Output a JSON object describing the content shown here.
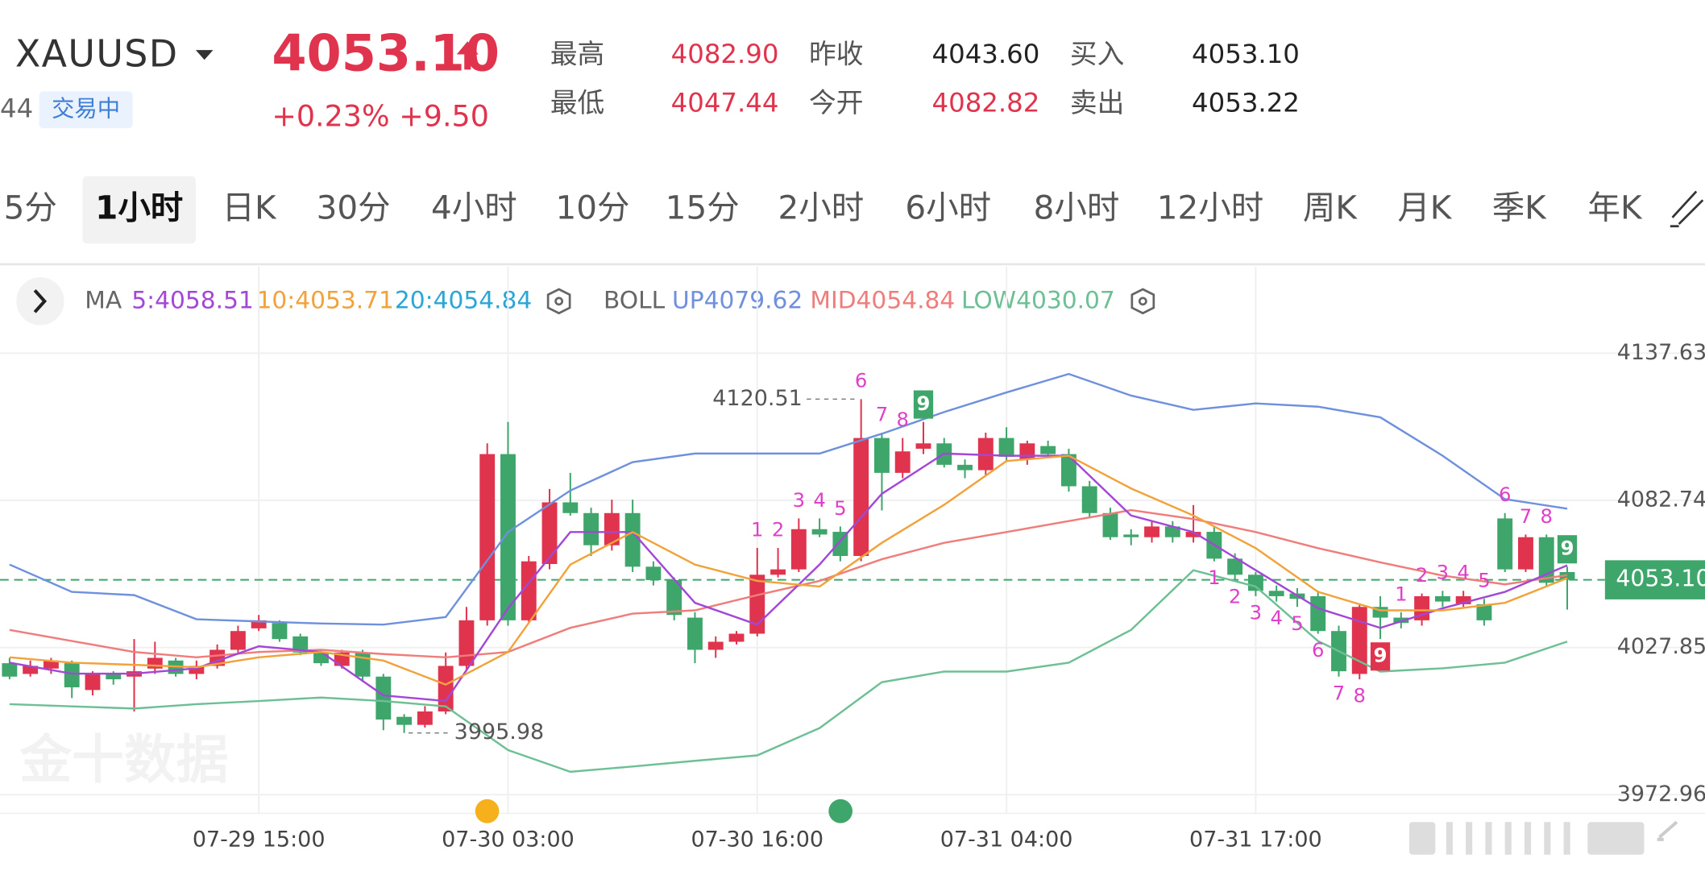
{
  "header": {
    "symbol": "XAUUSD",
    "code_fragment": "44",
    "status": "交易中",
    "price": "4053.10",
    "change_pct": "+0.23%",
    "change": "+9.50",
    "stats": [
      {
        "label": "最高",
        "value": "4082.90",
        "color": "#e0344e"
      },
      {
        "label": "昨收",
        "value": "4043.60",
        "color": "#222222"
      },
      {
        "label": "买入",
        "value": "4053.10",
        "color": "#222222"
      },
      {
        "label": "最低",
        "value": "4047.44",
        "color": "#e0344e"
      },
      {
        "label": "今开",
        "value": "4082.82",
        "color": "#e0344e"
      },
      {
        "label": "卖出",
        "value": "4053.22",
        "color": "#222222"
      }
    ]
  },
  "tabs": {
    "items": [
      "5分",
      "1小时",
      "日K",
      "30分",
      "4小时",
      "10分",
      "15分",
      "2小时",
      "6小时",
      "8小时",
      "12小时",
      "周K",
      "月K",
      "季K",
      "年K"
    ],
    "selected": 1
  },
  "watermark": "金十数据",
  "chart_data": {
    "type": "candlestick",
    "categories": [
      null,
      null,
      null,
      null,
      null,
      null,
      null,
      null,
      null,
      null,
      null,
      null,
      "07-29 15:00",
      null,
      null,
      null,
      null,
      null,
      null,
      null,
      null,
      null,
      null,
      null,
      "07-30 03:00",
      null,
      null,
      null,
      null,
      null,
      null,
      null,
      null,
      null,
      null,
      null,
      "07-30 16:00",
      null,
      null,
      null,
      null,
      null,
      null,
      null,
      null,
      null,
      null,
      null,
      "07-31 04:00",
      null,
      null,
      null,
      null,
      null,
      null,
      null,
      null,
      null,
      null,
      null,
      "07-31 17:00",
      null,
      null,
      null,
      null,
      null,
      null,
      null,
      null,
      null,
      null,
      null,
      null,
      null,
      null,
      null
    ],
    "open": [
      4022,
      4018,
      4020,
      4022,
      4012,
      4018,
      4017,
      4020,
      4023,
      4018,
      4021,
      4027,
      4035,
      4037,
      4032,
      4026,
      4021,
      4026,
      4017,
      4002,
      3999,
      4004,
      4021,
      4038,
      4100,
      4038,
      4059,
      4082,
      4078,
      4066,
      4078,
      4058,
      4053,
      4039,
      4027,
      4030,
      4033,
      4055,
      4057,
      4072,
      4071,
      4062,
      4106,
      4093,
      4102,
      4104,
      4096,
      4094,
      4106,
      4098,
      4103,
      4100,
      4088,
      4078,
      4070,
      4069,
      4073,
      4069,
      4071,
      4061,
      4055,
      4049,
      4048,
      4047,
      4034,
      4018,
      4043,
      4039,
      4038,
      4047,
      4044,
      4044,
      4076,
      4057,
      4069,
      4056
    ],
    "high": [
      4024,
      4023,
      4024,
      4023,
      4019,
      4019,
      4031,
      4030,
      4024,
      4023,
      4029,
      4036,
      4040,
      4038,
      4033,
      4027,
      4027,
      4027,
      4018,
      4003,
      4006,
      4026,
      4043,
      4104,
      4112,
      4062,
      4087,
      4093,
      4080,
      4083,
      4083,
      4060,
      4054,
      4041,
      4032,
      4034,
      4065,
      4065,
      4076,
      4076,
      4073,
      4120.51,
      4108,
      4106,
      4112,
      4106,
      4098,
      4108,
      4110,
      4105,
      4105,
      4102,
      4090,
      4080,
      4072,
      4075,
      4075,
      4081,
      4073,
      4063,
      4056,
      4051,
      4050,
      4049,
      4036,
      4044,
      4047,
      4041,
      4048,
      4049,
      4049,
      4046,
      4078,
      4070,
      4070,
      4058
    ],
    "low": [
      4016,
      4017,
      4018,
      4009,
      4010,
      4014,
      4004,
      4018,
      4017,
      4016,
      4020,
      4026,
      4034,
      4030,
      4025,
      4021,
      4020,
      4015,
      3997,
      3995.98,
      3998,
      4003,
      4019,
      4036,
      4036,
      4037,
      4057,
      4077,
      4062,
      4064,
      4056,
      4051,
      4038,
      4022,
      4024,
      4029,
      4032,
      4054,
      4056,
      4069,
      4060,
      4060,
      4079,
      4091,
      4100,
      4095,
      4091,
      4092,
      4097,
      4096,
      4099,
      4086,
      4076,
      4068,
      4066,
      4067,
      4067,
      4067,
      4060,
      4053,
      4047,
      4045,
      4043,
      4033,
      4017,
      4016,
      4031,
      4035,
      4036,
      4043,
      4043,
      4036,
      4056,
      4056,
      4051,
      4042
    ],
    "close": [
      4017,
      4021,
      4023,
      4013,
      4018,
      4016,
      4019,
      4024,
      4018,
      4021,
      4027,
      4034,
      4038,
      4031,
      4026,
      4022,
      4026,
      4017,
      4001,
      3999,
      4004,
      4021,
      4038,
      4100,
      4038,
      4060,
      4082,
      4078,
      4066,
      4078,
      4058,
      4053,
      4040,
      4027,
      4030,
      4033,
      4055,
      4057,
      4072,
      4070,
      4062,
      4106,
      4093,
      4101,
      4104,
      4096,
      4094,
      4106,
      4099,
      4104,
      4100,
      4088,
      4078,
      4069,
      4069,
      4073,
      4069,
      4071,
      4061,
      4055,
      4049,
      4047,
      4046,
      4034,
      4019,
      4043,
      4039,
      4037,
      4047,
      4045,
      4047,
      4038,
      4057,
      4069,
      4052,
      4053.1
    ],
    "up_color": "#e0344e",
    "down_color": "#3fa66b",
    "ylim": [
      3966,
      4170
    ],
    "yticks": [
      3972.96,
      4027.85,
      4082.74,
      4137.63
    ],
    "grid": true,
    "last_close_label": "4053.10",
    "last_color": "#3fa66b",
    "lines": {
      "x": [
        0,
        3,
        6,
        9,
        12,
        15,
        18,
        21,
        24,
        27,
        30,
        33,
        36,
        39,
        42,
        45,
        48,
        51,
        54,
        57,
        60,
        63,
        66,
        69,
        72,
        75
      ],
      "ma": {
        "label": "MA",
        "series": [
          {
            "name": "5:4058.51",
            "color": "#a347d6",
            "values": [
              4022.2,
              4018.1,
              4018.1,
              4020.1,
              4028.3,
              4026.2,
              4010.0,
              4007.9,
              4042.5,
              4070.9,
              4070.9,
              4044.5,
              4036.4,
              4058.8,
              4085.2,
              4100.2,
              4099.4,
              4099.4,
              4077.1,
              4070.9,
              4056.7,
              4042.5,
              4035.2,
              4042.5,
              4048.6,
              4058.51
            ]
          },
          {
            "name": "10:4053.71",
            "color": "#f2a23a",
            "values": [
              4024.2,
              4022.2,
              4021.4,
              4020.5,
              4024.2,
              4026.2,
              4023.0,
              4014.0,
              4026.2,
              4058.8,
              4070.9,
              4058.8,
              4052.7,
              4050.6,
              4066.9,
              4081.1,
              4097.4,
              4099.4,
              4087.2,
              4077.1,
              4064.9,
              4048.6,
              4041.7,
              4041.7,
              4044.5,
              4053.71
            ]
          },
          {
            "name": "20:4054.84",
            "color": "#2aa6d6"
          }
        ]
      },
      "boll": {
        "label": "BOLL",
        "series": [
          {
            "name": "UP4079.62",
            "color": "#6f90dd",
            "values": [
              4058.8,
              4048.6,
              4047.4,
              4038.4,
              4037.6,
              4036.8,
              4036.4,
              4039.2,
              4070.9,
              4086.4,
              4097.0,
              4100.2,
              4100.2,
              4100.2,
              4107.6,
              4115.7,
              4123.0,
              4129.9,
              4121.8,
              4116.5,
              4118.9,
              4117.7,
              4113.7,
              4099.4,
              4083.2,
              4079.62
            ]
          },
          {
            "name": "MID4054.84",
            "color": "#ee7d7b",
            "values": [
              4034.4,
              4030.3,
              4026.2,
              4024.2,
              4026.2,
              4027.0,
              4025.4,
              4024.2,
              4026.2,
              4035.2,
              4040.5,
              4041.7,
              4047.4,
              4052.7,
              4060.8,
              4066.9,
              4070.9,
              4075.0,
              4079.1,
              4075.8,
              4070.9,
              4064.9,
              4059.6,
              4054.7,
              4051.4,
              4054.84
            ]
          },
          {
            "name": "LOW4030.07",
            "color": "#6dbf95",
            "values": [
              4006.7,
              4005.9,
              4005.1,
              4006.7,
              4007.9,
              4009.2,
              4007.9,
              4005.9,
              3989.6,
              3981.5,
              3983.5,
              3985.6,
              3987.6,
              3997.8,
              4014.9,
              4018.9,
              4018.9,
              4022.2,
              4034.4,
              4056.7,
              4050.6,
              4030.3,
              4018.9,
              4020.1,
              4022.2,
              4030.07
            ]
          }
        ]
      }
    },
    "td_labels": [
      {
        "candle": 36,
        "label": "1",
        "side": "above"
      },
      {
        "candle": 37,
        "label": "2",
        "side": "above"
      },
      {
        "candle": 38,
        "label": "3",
        "side": "above"
      },
      {
        "candle": 39,
        "label": "4",
        "side": "above"
      },
      {
        "candle": 40,
        "label": "5",
        "side": "above"
      },
      {
        "candle": 41,
        "label": "6",
        "side": "above"
      },
      {
        "candle": 42,
        "label": "7",
        "side": "above"
      },
      {
        "candle": 43,
        "label": "8",
        "side": "above"
      },
      {
        "candle": 44,
        "label": "9",
        "side": "above",
        "boxed": true
      },
      {
        "candle": 58,
        "label": "1",
        "side": "below"
      },
      {
        "candle": 59,
        "label": "2",
        "side": "below"
      },
      {
        "candle": 60,
        "label": "3",
        "side": "below"
      },
      {
        "candle": 61,
        "label": "4",
        "side": "below"
      },
      {
        "candle": 62,
        "label": "5",
        "side": "below"
      },
      {
        "candle": 63,
        "label": "6",
        "side": "below"
      },
      {
        "candle": 64,
        "label": "7",
        "side": "below"
      },
      {
        "candle": 65,
        "label": "8",
        "side": "below"
      },
      {
        "candle": 66,
        "label": "9",
        "side": "below",
        "boxed": true
      },
      {
        "candle": 67,
        "label": "1",
        "side": "above"
      },
      {
        "candle": 68,
        "label": "2",
        "side": "above"
      },
      {
        "candle": 69,
        "label": "3",
        "side": "above"
      },
      {
        "candle": 70,
        "label": "4",
        "side": "above"
      },
      {
        "candle": 71,
        "label": "5",
        "side": "above"
      },
      {
        "candle": 72,
        "label": "6",
        "side": "above"
      },
      {
        "candle": 73,
        "label": "7",
        "side": "above"
      },
      {
        "candle": 74,
        "label": "8",
        "side": "above"
      },
      {
        "candle": 75,
        "label": "9",
        "side": "above",
        "boxed": true
      }
    ]
  }
}
